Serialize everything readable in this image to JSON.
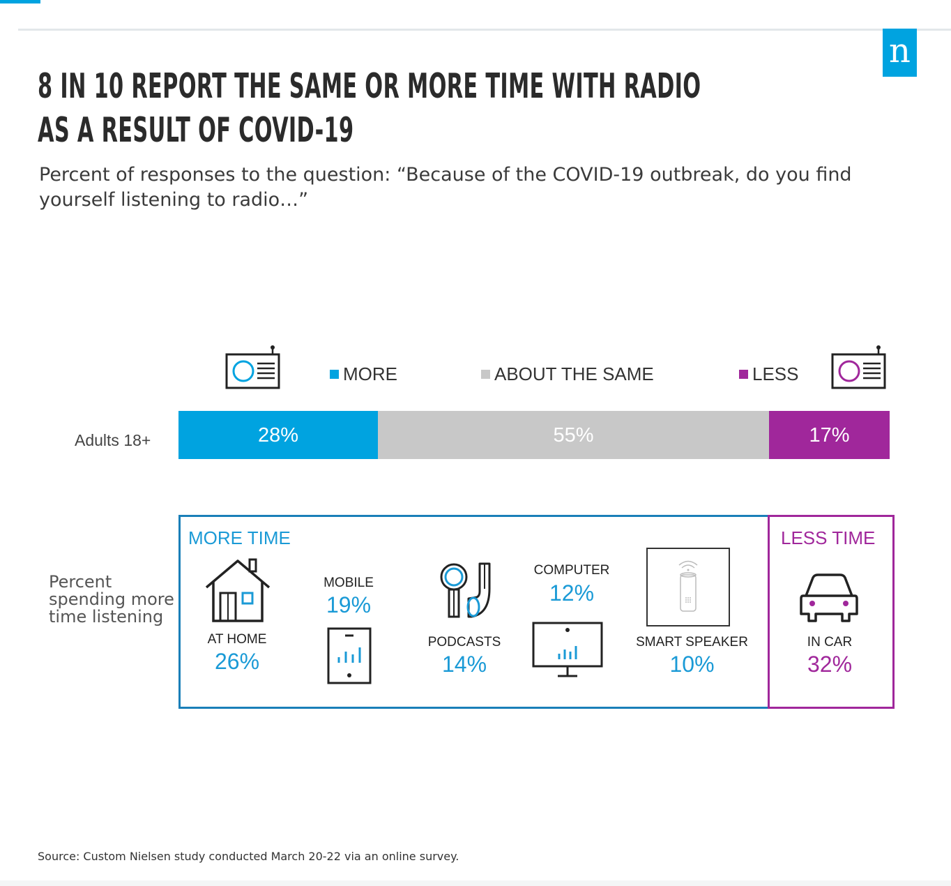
{
  "header": {
    "title_line1": "8 IN 10 REPORT THE SAME OR MORE TIME WITH RADIO",
    "title_line2": "AS A RESULT OF COVID-19",
    "subtitle": "Percent of responses to the question: “Because of the COVID-19 outbreak, do you find yourself listening to radio…”",
    "logo_letter": "n"
  },
  "colors": {
    "more": "#00a3e0",
    "same": "#c8c8c8",
    "less": "#a0279b",
    "more_box_border": "#1a7fb8",
    "text_blue": "#1a9ad6",
    "text_purple": "#a0279b"
  },
  "icons": [
    "radio-icon",
    "house-icon",
    "mobile-phone-icon",
    "headphones-icon",
    "computer-monitor-icon",
    "smart-speaker-icon",
    "car-icon"
  ],
  "chart_data": [
    {
      "type": "bar",
      "orientation": "horizontal",
      "stacked": true,
      "categories": [
        "Adults 18+"
      ],
      "series": [
        {
          "name": "MORE",
          "values": [
            28
          ],
          "label": "28%"
        },
        {
          "name": "ABOUT THE SAME",
          "values": [
            55
          ],
          "label": "55%"
        },
        {
          "name": "LESS",
          "values": [
            17
          ],
          "label": "17%"
        }
      ],
      "xlim": [
        0,
        100
      ],
      "legend": "top"
    },
    {
      "type": "table",
      "row_label": "Percent spending more time listening",
      "groups": [
        {
          "title": "MORE TIME",
          "items": [
            {
              "label": "AT HOME",
              "value": "26%",
              "icon": "house-icon"
            },
            {
              "label": "MOBILE",
              "value": "19%",
              "icon": "mobile-phone-icon"
            },
            {
              "label": "PODCASTS",
              "value": "14%",
              "icon": "headphones-icon"
            },
            {
              "label": "COMPUTER",
              "value": "12%",
              "icon": "computer-monitor-icon"
            },
            {
              "label": "SMART SPEAKER",
              "value": "10%",
              "icon": "smart-speaker-icon"
            }
          ]
        },
        {
          "title": "LESS TIME",
          "items": [
            {
              "label": "IN CAR",
              "value": "32%",
              "icon": "car-icon"
            }
          ]
        }
      ]
    }
  ],
  "footer": {
    "source": "Source: Custom Nielsen study conducted March 20-22 via an online survey."
  }
}
